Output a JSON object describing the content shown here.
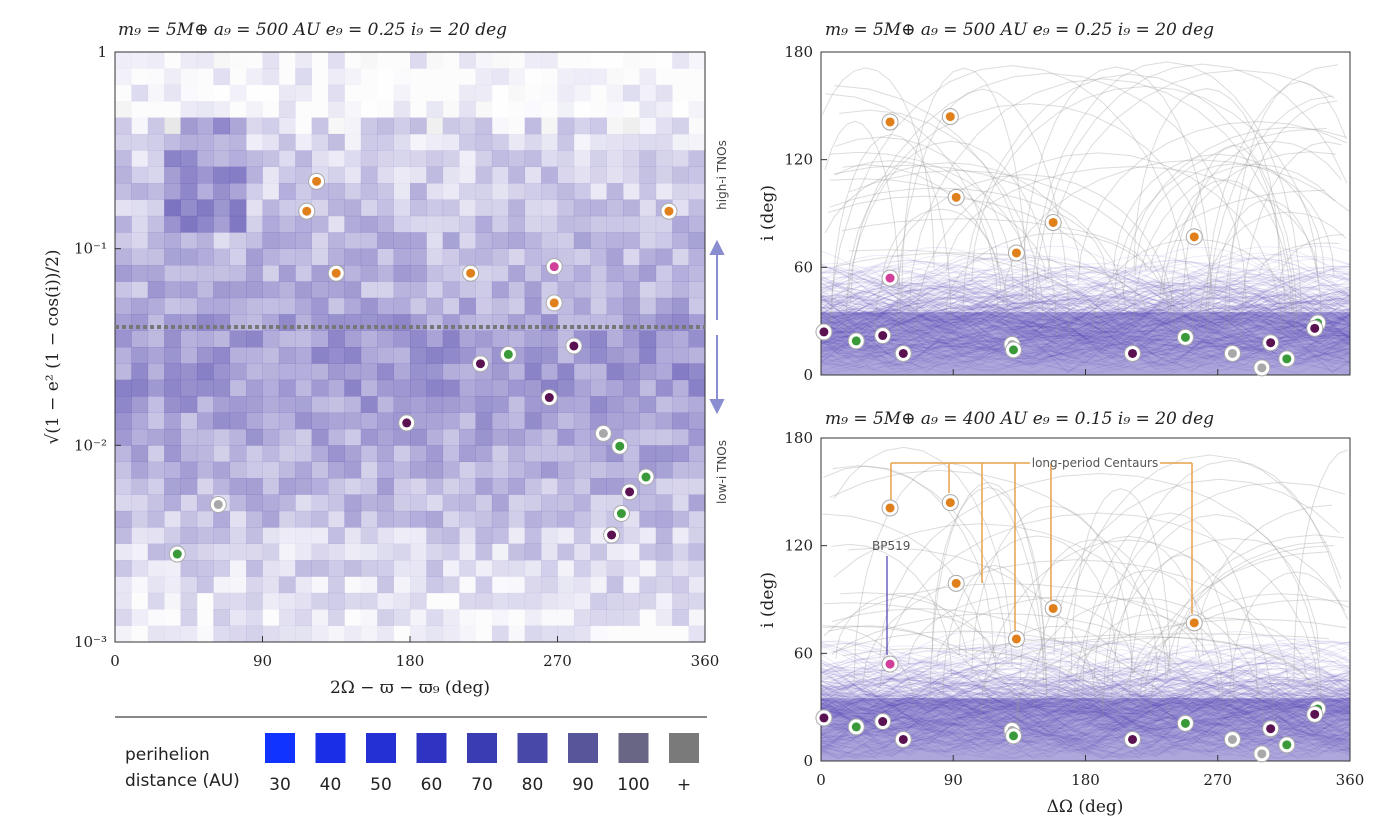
{
  "panel_left": {
    "title": "m₉ = 5M⊕   a₉ = 500 AU   e₉ = 0.25   i₉ = 20 deg",
    "xlabel": "2Ω − ϖ − ϖ₉ (deg)",
    "ylabel": "√(1 − e² (1 − cos(i))/2)",
    "region_high": "high-i TNOs",
    "region_low": "low-i TNOs"
  },
  "panel_top_right": {
    "title": "m₉ = 5M⊕   a₉ = 500 AU   e₉ = 0.25   i₉ = 20 deg",
    "ylabel": "i (deg)"
  },
  "panel_bottom_right": {
    "title": "m₉ = 5M⊕   a₉ = 400 AU   e₉ = 0.15   i₉ = 20 deg",
    "ylabel": "i (deg)",
    "xlabel": "ΔΩ (deg)",
    "annotation_centaurs": "long-period Centaurs",
    "annotation_bp": "BP519"
  },
  "legend": {
    "title_line1": "perihelion",
    "title_line2": "distance (AU)",
    "entries": [
      {
        "label": "30",
        "color": "#1033ff"
      },
      {
        "label": "40",
        "color": "#1a2ee8"
      },
      {
        "label": "50",
        "color": "#2430d4"
      },
      {
        "label": "60",
        "color": "#2e33c2"
      },
      {
        "label": "70",
        "color": "#3a3cb4"
      },
      {
        "label": "80",
        "color": "#4848a8"
      },
      {
        "label": "90",
        "color": "#58569a"
      },
      {
        "label": "100",
        "color": "#686684"
      },
      {
        "label": "+",
        "color": "#7a7a7a"
      }
    ]
  },
  "colors": {
    "orange": "#e0801c",
    "green": "#3a9a3a",
    "magenta": "#d0409a",
    "purple": "#5a1250",
    "gray": "#a8a8a8",
    "blue_track": "#4a3cb0",
    "heat_base": "#5a4fb0",
    "arrow": "#8a8ed0"
  },
  "chart_data": [
    {
      "type": "heatmap",
      "title": "m₉ = 5M⊕   a₉ = 500 AU   e₉ = 0.25   i₉ = 20 deg",
      "xlabel": "2Ω − ϖ − ϖ₉ (deg)",
      "ylabel": "√(1 − e² (1 − cos(i))/2)",
      "xlim": [
        0,
        360
      ],
      "ylim": [
        0.001,
        1
      ],
      "yscale": "log",
      "xticks": [
        "0",
        "90",
        "180",
        "270",
        "360"
      ],
      "yticks": [
        "1",
        "10⁻¹",
        "10⁻²",
        "10⁻³"
      ],
      "divider_y": 0.04,
      "points": [
        {
          "x": 123,
          "y": 0.22,
          "cls": "orange"
        },
        {
          "x": 117,
          "y": 0.155,
          "cls": "orange"
        },
        {
          "x": 135,
          "y": 0.075,
          "cls": "orange"
        },
        {
          "x": 217,
          "y": 0.075,
          "cls": "orange"
        },
        {
          "x": 268,
          "y": 0.053,
          "cls": "orange"
        },
        {
          "x": 268,
          "y": 0.081,
          "cls": "magenta"
        },
        {
          "x": 338,
          "y": 0.155,
          "cls": "orange"
        },
        {
          "x": 223,
          "y": 0.026,
          "cls": "purple"
        },
        {
          "x": 240,
          "y": 0.029,
          "cls": "green"
        },
        {
          "x": 280,
          "y": 0.032,
          "cls": "purple"
        },
        {
          "x": 265,
          "y": 0.0175,
          "cls": "purple"
        },
        {
          "x": 178,
          "y": 0.013,
          "cls": "purple"
        },
        {
          "x": 298,
          "y": 0.0115,
          "cls": "gray"
        },
        {
          "x": 308,
          "y": 0.0099,
          "cls": "green"
        },
        {
          "x": 324,
          "y": 0.0069,
          "cls": "green"
        },
        {
          "x": 314,
          "y": 0.0058,
          "cls": "purple"
        },
        {
          "x": 309,
          "y": 0.0045,
          "cls": "green"
        },
        {
          "x": 303,
          "y": 0.0035,
          "cls": "purple"
        },
        {
          "x": 63,
          "y": 0.005,
          "cls": "gray"
        },
        {
          "x": 38,
          "y": 0.0028,
          "cls": "green"
        }
      ]
    },
    {
      "type": "scatter",
      "title": "m₉ = 5M⊕   a₉ = 500 AU   e₉ = 0.25   i₉ = 20 deg",
      "xlabel": "",
      "ylabel": "i (deg)",
      "xlim": [
        0,
        360
      ],
      "ylim": [
        0,
        180
      ],
      "yticks": [
        "0",
        "60",
        "120",
        "180"
      ],
      "points": [
        {
          "x": 47,
          "y": 141,
          "cls": "orange"
        },
        {
          "x": 88,
          "y": 144,
          "cls": "orange"
        },
        {
          "x": 92,
          "y": 99,
          "cls": "orange"
        },
        {
          "x": 158,
          "y": 85,
          "cls": "orange"
        },
        {
          "x": 133,
          "y": 68,
          "cls": "orange"
        },
        {
          "x": 254,
          "y": 77,
          "cls": "orange"
        },
        {
          "x": 47,
          "y": 54,
          "cls": "magenta"
        },
        {
          "x": 2,
          "y": 24,
          "cls": "purple"
        },
        {
          "x": 24,
          "y": 19,
          "cls": "green"
        },
        {
          "x": 42,
          "y": 22,
          "cls": "purple"
        },
        {
          "x": 56,
          "y": 12,
          "cls": "purple"
        },
        {
          "x": 130,
          "y": 17,
          "cls": "gray"
        },
        {
          "x": 131,
          "y": 14,
          "cls": "green"
        },
        {
          "x": 212,
          "y": 12,
          "cls": "purple"
        },
        {
          "x": 248,
          "y": 21,
          "cls": "green"
        },
        {
          "x": 280,
          "y": 12,
          "cls": "gray"
        },
        {
          "x": 306,
          "y": 18,
          "cls": "purple"
        },
        {
          "x": 300,
          "y": 4,
          "cls": "gray"
        },
        {
          "x": 317,
          "y": 9,
          "cls": "green"
        },
        {
          "x": 338,
          "y": 29,
          "cls": "green"
        },
        {
          "x": 336,
          "y": 26,
          "cls": "purple"
        }
      ]
    },
    {
      "type": "scatter",
      "title": "m₉ = 5M⊕   a₉ = 400 AU   e₉ = 0.15   i₉ = 20 deg",
      "xlabel": "ΔΩ (deg)",
      "ylabel": "i (deg)",
      "xlim": [
        0,
        360
      ],
      "ylim": [
        0,
        180
      ],
      "xticks": [
        "0",
        "90",
        "180",
        "270",
        "360"
      ],
      "yticks": [
        "0",
        "60",
        "120",
        "180"
      ],
      "points": [
        {
          "x": 47,
          "y": 141,
          "cls": "orange"
        },
        {
          "x": 88,
          "y": 144,
          "cls": "orange"
        },
        {
          "x": 92,
          "y": 99,
          "cls": "orange"
        },
        {
          "x": 158,
          "y": 85,
          "cls": "orange"
        },
        {
          "x": 133,
          "y": 68,
          "cls": "orange"
        },
        {
          "x": 254,
          "y": 77,
          "cls": "orange"
        },
        {
          "x": 47,
          "y": 54,
          "cls": "magenta"
        },
        {
          "x": 2,
          "y": 24,
          "cls": "purple"
        },
        {
          "x": 24,
          "y": 19,
          "cls": "green"
        },
        {
          "x": 42,
          "y": 22,
          "cls": "purple"
        },
        {
          "x": 56,
          "y": 12,
          "cls": "purple"
        },
        {
          "x": 130,
          "y": 17,
          "cls": "gray"
        },
        {
          "x": 131,
          "y": 14,
          "cls": "green"
        },
        {
          "x": 212,
          "y": 12,
          "cls": "purple"
        },
        {
          "x": 248,
          "y": 21,
          "cls": "green"
        },
        {
          "x": 280,
          "y": 12,
          "cls": "gray"
        },
        {
          "x": 306,
          "y": 18,
          "cls": "purple"
        },
        {
          "x": 300,
          "y": 4,
          "cls": "gray"
        },
        {
          "x": 317,
          "y": 9,
          "cls": "green"
        },
        {
          "x": 338,
          "y": 29,
          "cls": "green"
        },
        {
          "x": 336,
          "y": 26,
          "cls": "purple"
        }
      ]
    }
  ]
}
